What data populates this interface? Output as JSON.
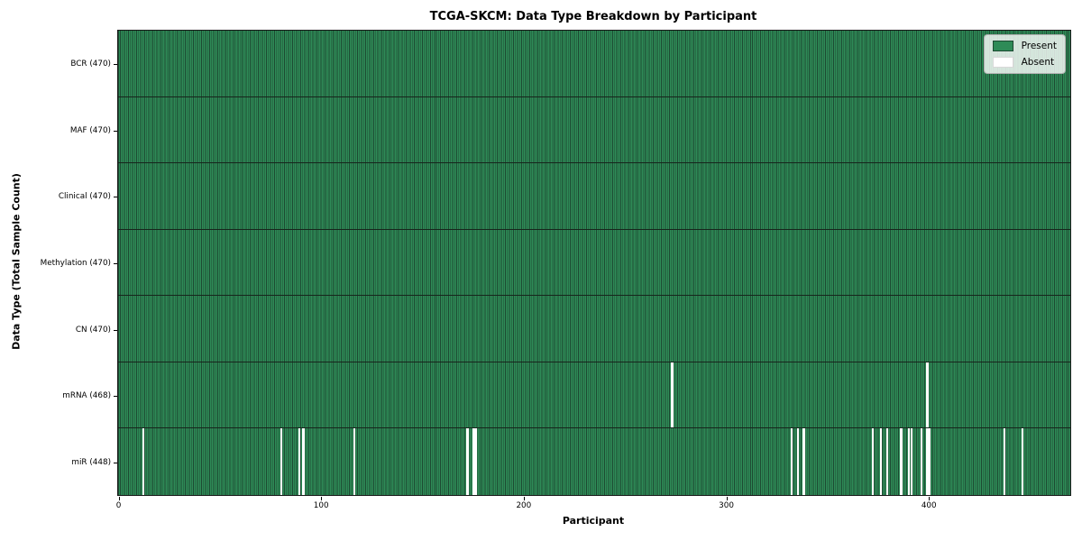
{
  "chart_data": {
    "type": "heatmap",
    "title": "TCGA-SKCM: Data Type Breakdown by Participant",
    "xlabel": "Participant",
    "ylabel": "Data Type (Total Sample Count)",
    "x_ticks": [
      0,
      100,
      200,
      300,
      400
    ],
    "x_range": [
      0,
      470
    ],
    "n_participants": 470,
    "grid": "row-separators-only",
    "legend": {
      "position": "upper right",
      "entries": [
        {
          "label": "Present",
          "color": "#2e8b57"
        },
        {
          "label": "Absent",
          "color": "#ffffff"
        }
      ]
    },
    "colors": {
      "present_fill": "#2e8b57",
      "cell_edge": "#1d4a32",
      "row_separator": "#17251c",
      "frame": "#1a1a1a",
      "absent": "#ffffff",
      "legend_border": "#b0b0b0"
    },
    "rows": [
      {
        "label": "BCR (470)",
        "data_type": "BCR",
        "present_count": 470,
        "absent_participants": []
      },
      {
        "label": "MAF (470)",
        "data_type": "MAF",
        "present_count": 470,
        "absent_participants": []
      },
      {
        "label": "Clinical (470)",
        "data_type": "Clinical",
        "present_count": 470,
        "absent_participants": []
      },
      {
        "label": "Methylation (470)",
        "data_type": "Methylation",
        "present_count": 470,
        "absent_participants": []
      },
      {
        "label": "CN (470)",
        "data_type": "CN",
        "present_count": 470,
        "absent_participants": []
      },
      {
        "label": "mRNA (468)",
        "data_type": "mRNA",
        "present_count": 468,
        "absent_participants": [
          273,
          399
        ]
      },
      {
        "label": "miR (448)",
        "data_type": "miR",
        "present_count": 448,
        "absent_participants": [
          12,
          80,
          89,
          91,
          116,
          172,
          175,
          176,
          332,
          335,
          338,
          372,
          376,
          379,
          386,
          390,
          391,
          396,
          399,
          400,
          437,
          446
        ]
      }
    ]
  }
}
